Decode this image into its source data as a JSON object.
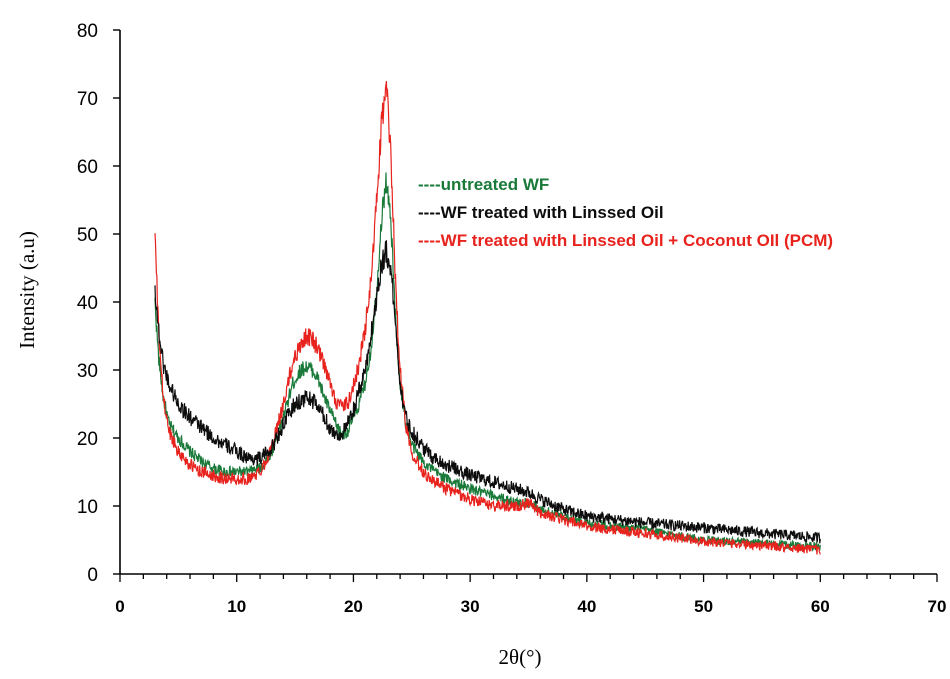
{
  "chart_data": {
    "type": "line",
    "title": "",
    "xlabel": "2θ(°)",
    "ylabel": "Intensity (a.u)",
    "xlim": [
      0,
      70
    ],
    "ylim": [
      0,
      80
    ],
    "x_ticks": [
      0,
      10,
      20,
      30,
      40,
      50,
      60,
      70
    ],
    "y_ticks": [
      0,
      10,
      20,
      30,
      40,
      50,
      60,
      70,
      80
    ],
    "grid": false,
    "legend_position": "center-right",
    "series": [
      {
        "name": "untreated WF",
        "legend_prefix": "----",
        "color": "#1a7a3a",
        "noise": 0.9,
        "x": [
          3.0,
          3.3,
          3.7,
          4.2,
          5,
          6,
          7,
          8,
          9,
          10,
          11,
          12,
          13,
          14,
          14.8,
          15.5,
          16,
          16.5,
          17,
          17.5,
          18,
          18.5,
          19,
          19.5,
          20,
          20.5,
          21,
          21.5,
          22,
          22.4,
          22.8,
          23.2,
          23.6,
          24,
          24.5,
          25,
          26,
          27,
          28,
          30,
          32,
          34,
          35,
          36,
          38,
          40,
          45,
          50,
          55,
          58,
          60
        ],
        "y": [
          40,
          32,
          26,
          22,
          20,
          18,
          16.5,
          15.5,
          15,
          15,
          15,
          15.5,
          18,
          23,
          28,
          30,
          30.5,
          30,
          28.5,
          26,
          24,
          22,
          20.5,
          21,
          23,
          25,
          28,
          33,
          42,
          52,
          58,
          52,
          38,
          28,
          22,
          19,
          16.5,
          15,
          14,
          12.5,
          11.5,
          10.5,
          10.5,
          9.5,
          8.5,
          7.5,
          6.5,
          5,
          4.5,
          4.2,
          4
        ]
      },
      {
        "name": "WF treated with Linssed Oil",
        "legend_prefix": "----",
        "color": "#0d0d0d",
        "noise": 1.1,
        "x": [
          3.0,
          3.3,
          3.7,
          4.2,
          5,
          6,
          7,
          8,
          9,
          10,
          11,
          12,
          13,
          14,
          14.8,
          15.5,
          16,
          16.5,
          17,
          17.5,
          18,
          18.5,
          19,
          19.5,
          20,
          20.5,
          21,
          21.5,
          22,
          22.4,
          22.8,
          23.2,
          23.6,
          24,
          24.5,
          25,
          26,
          27,
          28,
          30,
          32,
          34,
          35,
          36,
          38,
          40,
          45,
          50,
          55,
          58,
          60
        ],
        "y": [
          42,
          36,
          31,
          28,
          25,
          23,
          21.5,
          20,
          19,
          18,
          17,
          17,
          18.5,
          22,
          24.5,
          25.5,
          26,
          25.5,
          24.5,
          23,
          21.5,
          20.5,
          20.5,
          22,
          24,
          27,
          30,
          35,
          41,
          45.5,
          47.5,
          45,
          37,
          28,
          23,
          21,
          18.5,
          17,
          16,
          14.5,
          13.5,
          12.5,
          12,
          11,
          9.5,
          8.5,
          7.5,
          6.8,
          6,
          5.6,
          5.3
        ]
      },
      {
        "name": "WF treated with Linssed Oil + Coconut OIl (PCM)",
        "legend_prefix": "----",
        "color": "#e8231e",
        "noise": 1.0,
        "x": [
          3.0,
          3.3,
          3.7,
          4.2,
          5,
          6,
          7,
          8,
          9,
          10,
          11,
          12,
          13,
          14,
          14.8,
          15.5,
          16,
          16.5,
          17,
          17.5,
          18,
          18.5,
          19,
          19.5,
          20,
          20.5,
          21,
          21.5,
          22,
          22.4,
          22.8,
          23.2,
          23.6,
          24,
          24.5,
          25,
          26,
          27,
          28,
          30,
          32,
          34,
          35,
          36,
          38,
          40,
          45,
          50,
          55,
          58,
          60
        ],
        "y": [
          50,
          36,
          26,
          21,
          18,
          16,
          15,
          14.5,
          14,
          14,
          14,
          15,
          18.5,
          25,
          31,
          34,
          35,
          34.5,
          33,
          30.5,
          28,
          25.5,
          24.5,
          25,
          27.5,
          31,
          36,
          43,
          55,
          66,
          72,
          62,
          43,
          30,
          22,
          18,
          15,
          13.5,
          12.5,
          11,
          10,
          10,
          10.5,
          9,
          8,
          7,
          6,
          4.8,
          4.2,
          3.8,
          3.5
        ]
      }
    ]
  }
}
